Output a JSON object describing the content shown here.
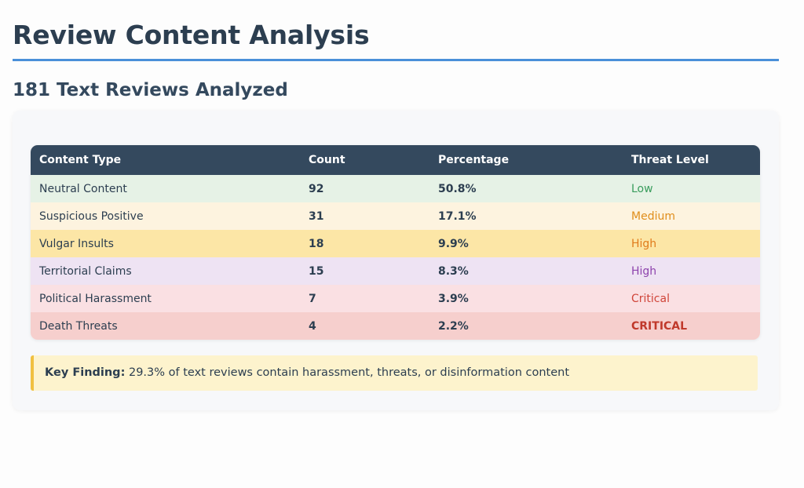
{
  "header": {
    "title": "Review Content Analysis",
    "subtitle": "181 Text Reviews Analyzed"
  },
  "table": {
    "columns": [
      "Content Type",
      "Count",
      "Percentage",
      "Threat Level"
    ],
    "rows": [
      {
        "type": "Neutral Content",
        "count": "92",
        "percentage": "50.8%",
        "threat": "Low",
        "row_color": "#e6f2e6",
        "threat_color": "#3a9d5d",
        "threat_bold": false
      },
      {
        "type": "Suspicious Positive",
        "count": "31",
        "percentage": "17.1%",
        "threat": "Medium",
        "row_color": "#fdf3df",
        "threat_color": "#e08e1b",
        "threat_bold": false
      },
      {
        "type": "Vulgar Insults",
        "count": "18",
        "percentage": "9.9%",
        "threat": "High",
        "row_color": "#fce6a6",
        "threat_color": "#e07b1b",
        "threat_bold": false
      },
      {
        "type": "Territorial Claims",
        "count": "15",
        "percentage": "8.3%",
        "threat": "High",
        "row_color": "#eee3f3",
        "threat_color": "#8e44ad",
        "threat_bold": false
      },
      {
        "type": "Political Harassment",
        "count": "7",
        "percentage": "3.9%",
        "threat": "Critical",
        "row_color": "#fae0e3",
        "threat_color": "#d0453a",
        "threat_bold": false
      },
      {
        "type": "Death Threats",
        "count": "4",
        "percentage": "2.2%",
        "threat": "CRITICAL",
        "row_color": "#f6cfcd",
        "threat_color": "#c0392b",
        "threat_bold": true
      }
    ]
  },
  "finding": {
    "label": "Key Finding:",
    "text": " 29.3% of text reviews contain harassment, threats, or disinformation content"
  },
  "colors": {
    "accent": "#4a90d9",
    "header_bg": "#34495e"
  }
}
